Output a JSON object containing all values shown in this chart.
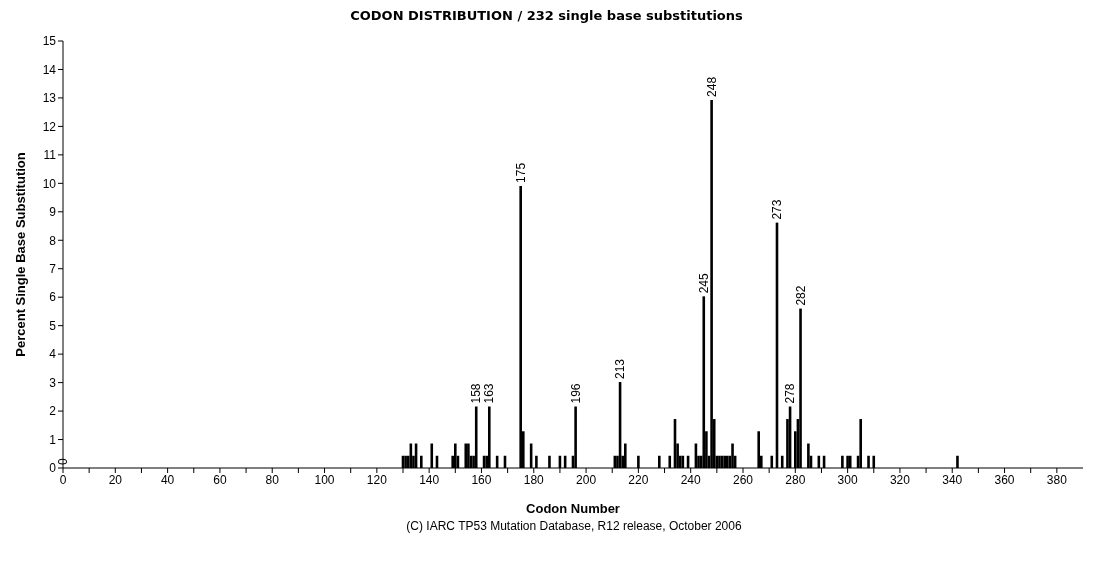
{
  "chart_data": {
    "type": "bar",
    "title": "CODON DISTRIBUTION / 232 single base substitutions",
    "xlabel": "Codon Number",
    "ylabel": "Percent Single Base Substitution",
    "annotations": [
      "(C) IARC TP53 Mutation Database, R12 release, October 2006",
      "0",
      {
        "text": "158",
        "x": 158,
        "y": 2.16
      },
      {
        "text": "163",
        "x": 163,
        "y": 2.16
      },
      {
        "text": "175",
        "x": 175,
        "y": 9.91
      },
      {
        "text": "196",
        "x": 196,
        "y": 2.16
      },
      {
        "text": "213",
        "x": 213,
        "y": 3.02
      },
      {
        "text": "245",
        "x": 245,
        "y": 6.03
      },
      {
        "text": "248",
        "x": 248,
        "y": 12.93
      },
      {
        "text": "273",
        "x": 273,
        "y": 8.62
      },
      {
        "text": "278",
        "x": 278,
        "y": 2.16
      },
      {
        "text": "282",
        "x": 282,
        "y": 5.6
      }
    ],
    "x": [
      130,
      131,
      132,
      133,
      134,
      135,
      137,
      141,
      143,
      149,
      150,
      151,
      154,
      155,
      156,
      157,
      158,
      161,
      162,
      163,
      166,
      169,
      175,
      176,
      179,
      181,
      186,
      190,
      192,
      195,
      196,
      211,
      212,
      213,
      214,
      215,
      220,
      228,
      232,
      234,
      235,
      236,
      237,
      239,
      242,
      243,
      244,
      245,
      246,
      247,
      248,
      249,
      250,
      251,
      252,
      253,
      254,
      255,
      256,
      257,
      266,
      267,
      271,
      273,
      275,
      277,
      278,
      280,
      281,
      282,
      285,
      286,
      289,
      291,
      298,
      300,
      301,
      304,
      305,
      308,
      310,
      342
    ],
    "values": [
      0.43,
      0.43,
      0.43,
      0.86,
      0.43,
      0.86,
      0.43,
      0.86,
      0.43,
      0.43,
      0.86,
      0.43,
      0.86,
      0.86,
      0.43,
      0.43,
      2.16,
      0.43,
      0.43,
      2.16,
      0.43,
      0.43,
      9.91,
      1.29,
      0.86,
      0.43,
      0.43,
      0.43,
      0.43,
      0.43,
      2.16,
      0.43,
      0.43,
      3.02,
      0.43,
      0.86,
      0.43,
      0.43,
      0.43,
      1.72,
      0.86,
      0.43,
      0.43,
      0.43,
      0.86,
      0.43,
      0.43,
      6.03,
      1.29,
      0.43,
      12.93,
      1.72,
      0.43,
      0.43,
      0.43,
      0.43,
      0.43,
      0.43,
      0.86,
      0.43,
      1.29,
      0.43,
      0.43,
      8.62,
      0.43,
      1.72,
      2.16,
      1.29,
      1.72,
      5.6,
      0.86,
      0.43,
      0.43,
      0.43,
      0.43,
      0.43,
      0.43,
      0.43,
      1.72,
      0.43,
      0.43,
      0.43
    ],
    "color": "#000000",
    "xlim": [
      0,
      390
    ],
    "xticks": [
      0,
      {
        "value": 10,
        "label": null
      },
      20,
      {
        "value": 30,
        "label": null
      },
      40,
      {
        "value": 50,
        "label": null
      },
      60,
      {
        "value": 70,
        "label": null
      },
      80,
      {
        "value": 90,
        "label": null
      },
      100,
      {
        "value": 110,
        "label": null
      },
      120,
      {
        "value": 130,
        "label": null
      },
      140,
      {
        "value": 150,
        "label": null
      },
      160,
      {
        "value": 170,
        "label": null
      },
      180,
      {
        "value": 190,
        "label": null
      },
      200,
      {
        "value": 210,
        "label": null
      },
      220,
      {
        "value": 230,
        "label": null
      },
      240,
      {
        "value": 250,
        "label": null
      },
      260,
      {
        "value": 270,
        "label": null
      },
      280,
      {
        "value": 290,
        "label": null
      },
      300,
      {
        "value": 310,
        "label": null
      },
      320,
      {
        "value": 330,
        "label": null
      },
      340,
      {
        "value": 350,
        "label": null
      },
      360,
      {
        "value": 370,
        "label": null
      },
      380
    ],
    "ylim": [
      0,
      15
    ],
    "yticks": [
      0,
      1,
      2,
      3,
      4,
      5,
      6,
      7,
      8,
      9,
      10,
      11,
      12,
      13,
      14,
      15
    ],
    "grid": false
  }
}
